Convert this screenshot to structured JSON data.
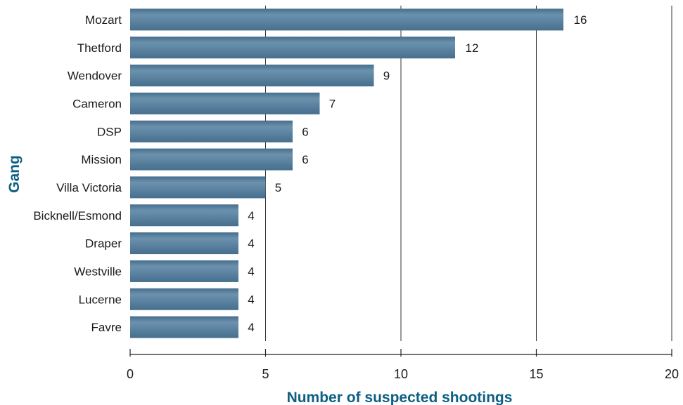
{
  "chart_data": {
    "type": "bar",
    "orientation": "horizontal",
    "categories": [
      "Mozart",
      "Thetford",
      "Wendover",
      "Cameron",
      "DSP",
      "Mission",
      "Villa Victoria",
      "Bicknell/Esmond",
      "Draper",
      "Westville",
      "Lucerne",
      "Favre"
    ],
    "values": [
      16,
      12,
      9,
      7,
      6,
      6,
      5,
      4,
      4,
      4,
      4,
      4
    ],
    "xlabel": "Number of suspected shootings",
    "ylabel": "Gang",
    "xlim": [
      0,
      20
    ],
    "xticks": [
      0,
      5,
      10,
      15,
      20
    ],
    "xtick_labels": [
      "0",
      "5",
      "10",
      "15",
      "20"
    ],
    "grid": "vertical",
    "data_labels": true,
    "bar_color": "#466f8e",
    "bar_highlight_color": "#6b91ad",
    "title_color": "#0d5f84",
    "grid_color": "#333333"
  }
}
